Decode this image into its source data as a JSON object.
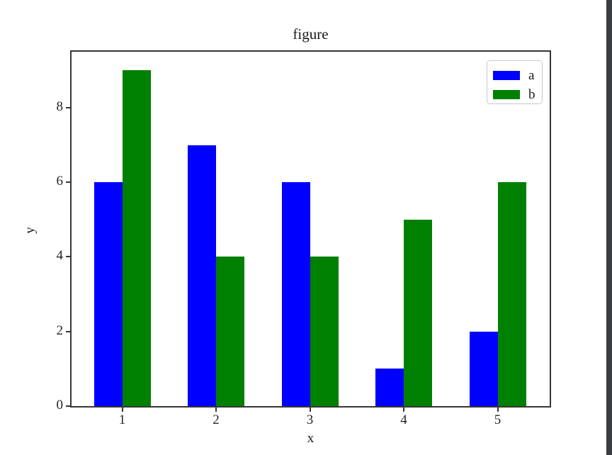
{
  "window": {
    "edge_color": "#3a3e43",
    "background": "#ffffff"
  },
  "chart_data": {
    "type": "bar",
    "title": "figure",
    "xlabel": "x",
    "ylabel": "y",
    "categories": [
      "1",
      "2",
      "3",
      "4",
      "5"
    ],
    "series": [
      {
        "name": "a",
        "color": "#0000ff",
        "values": [
          6,
          7,
          6,
          1,
          2
        ]
      },
      {
        "name": "b",
        "color": "#008000",
        "values": [
          9,
          4,
          4,
          5,
          6
        ]
      }
    ],
    "ylim": [
      0,
      9.5
    ],
    "yticks": [
      "0",
      "2",
      "4",
      "6",
      "8"
    ],
    "ytick_values": [
      0,
      2,
      4,
      6,
      8
    ],
    "legend_position": "upper right",
    "grid": false,
    "axis_color": "#363636",
    "plot_background": "#ffffff"
  }
}
